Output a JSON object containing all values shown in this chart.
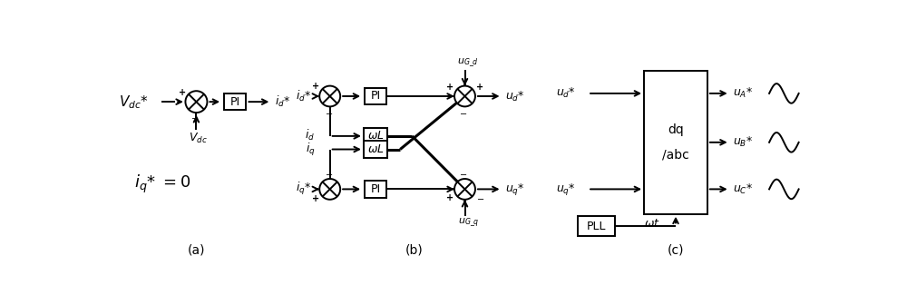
{
  "bg_color": "#ffffff",
  "line_color": "#000000",
  "fig_width": 10.0,
  "fig_height": 3.25,
  "dpi": 100,
  "label_a": "(a)",
  "label_b": "(b)",
  "label_c": "(c)"
}
